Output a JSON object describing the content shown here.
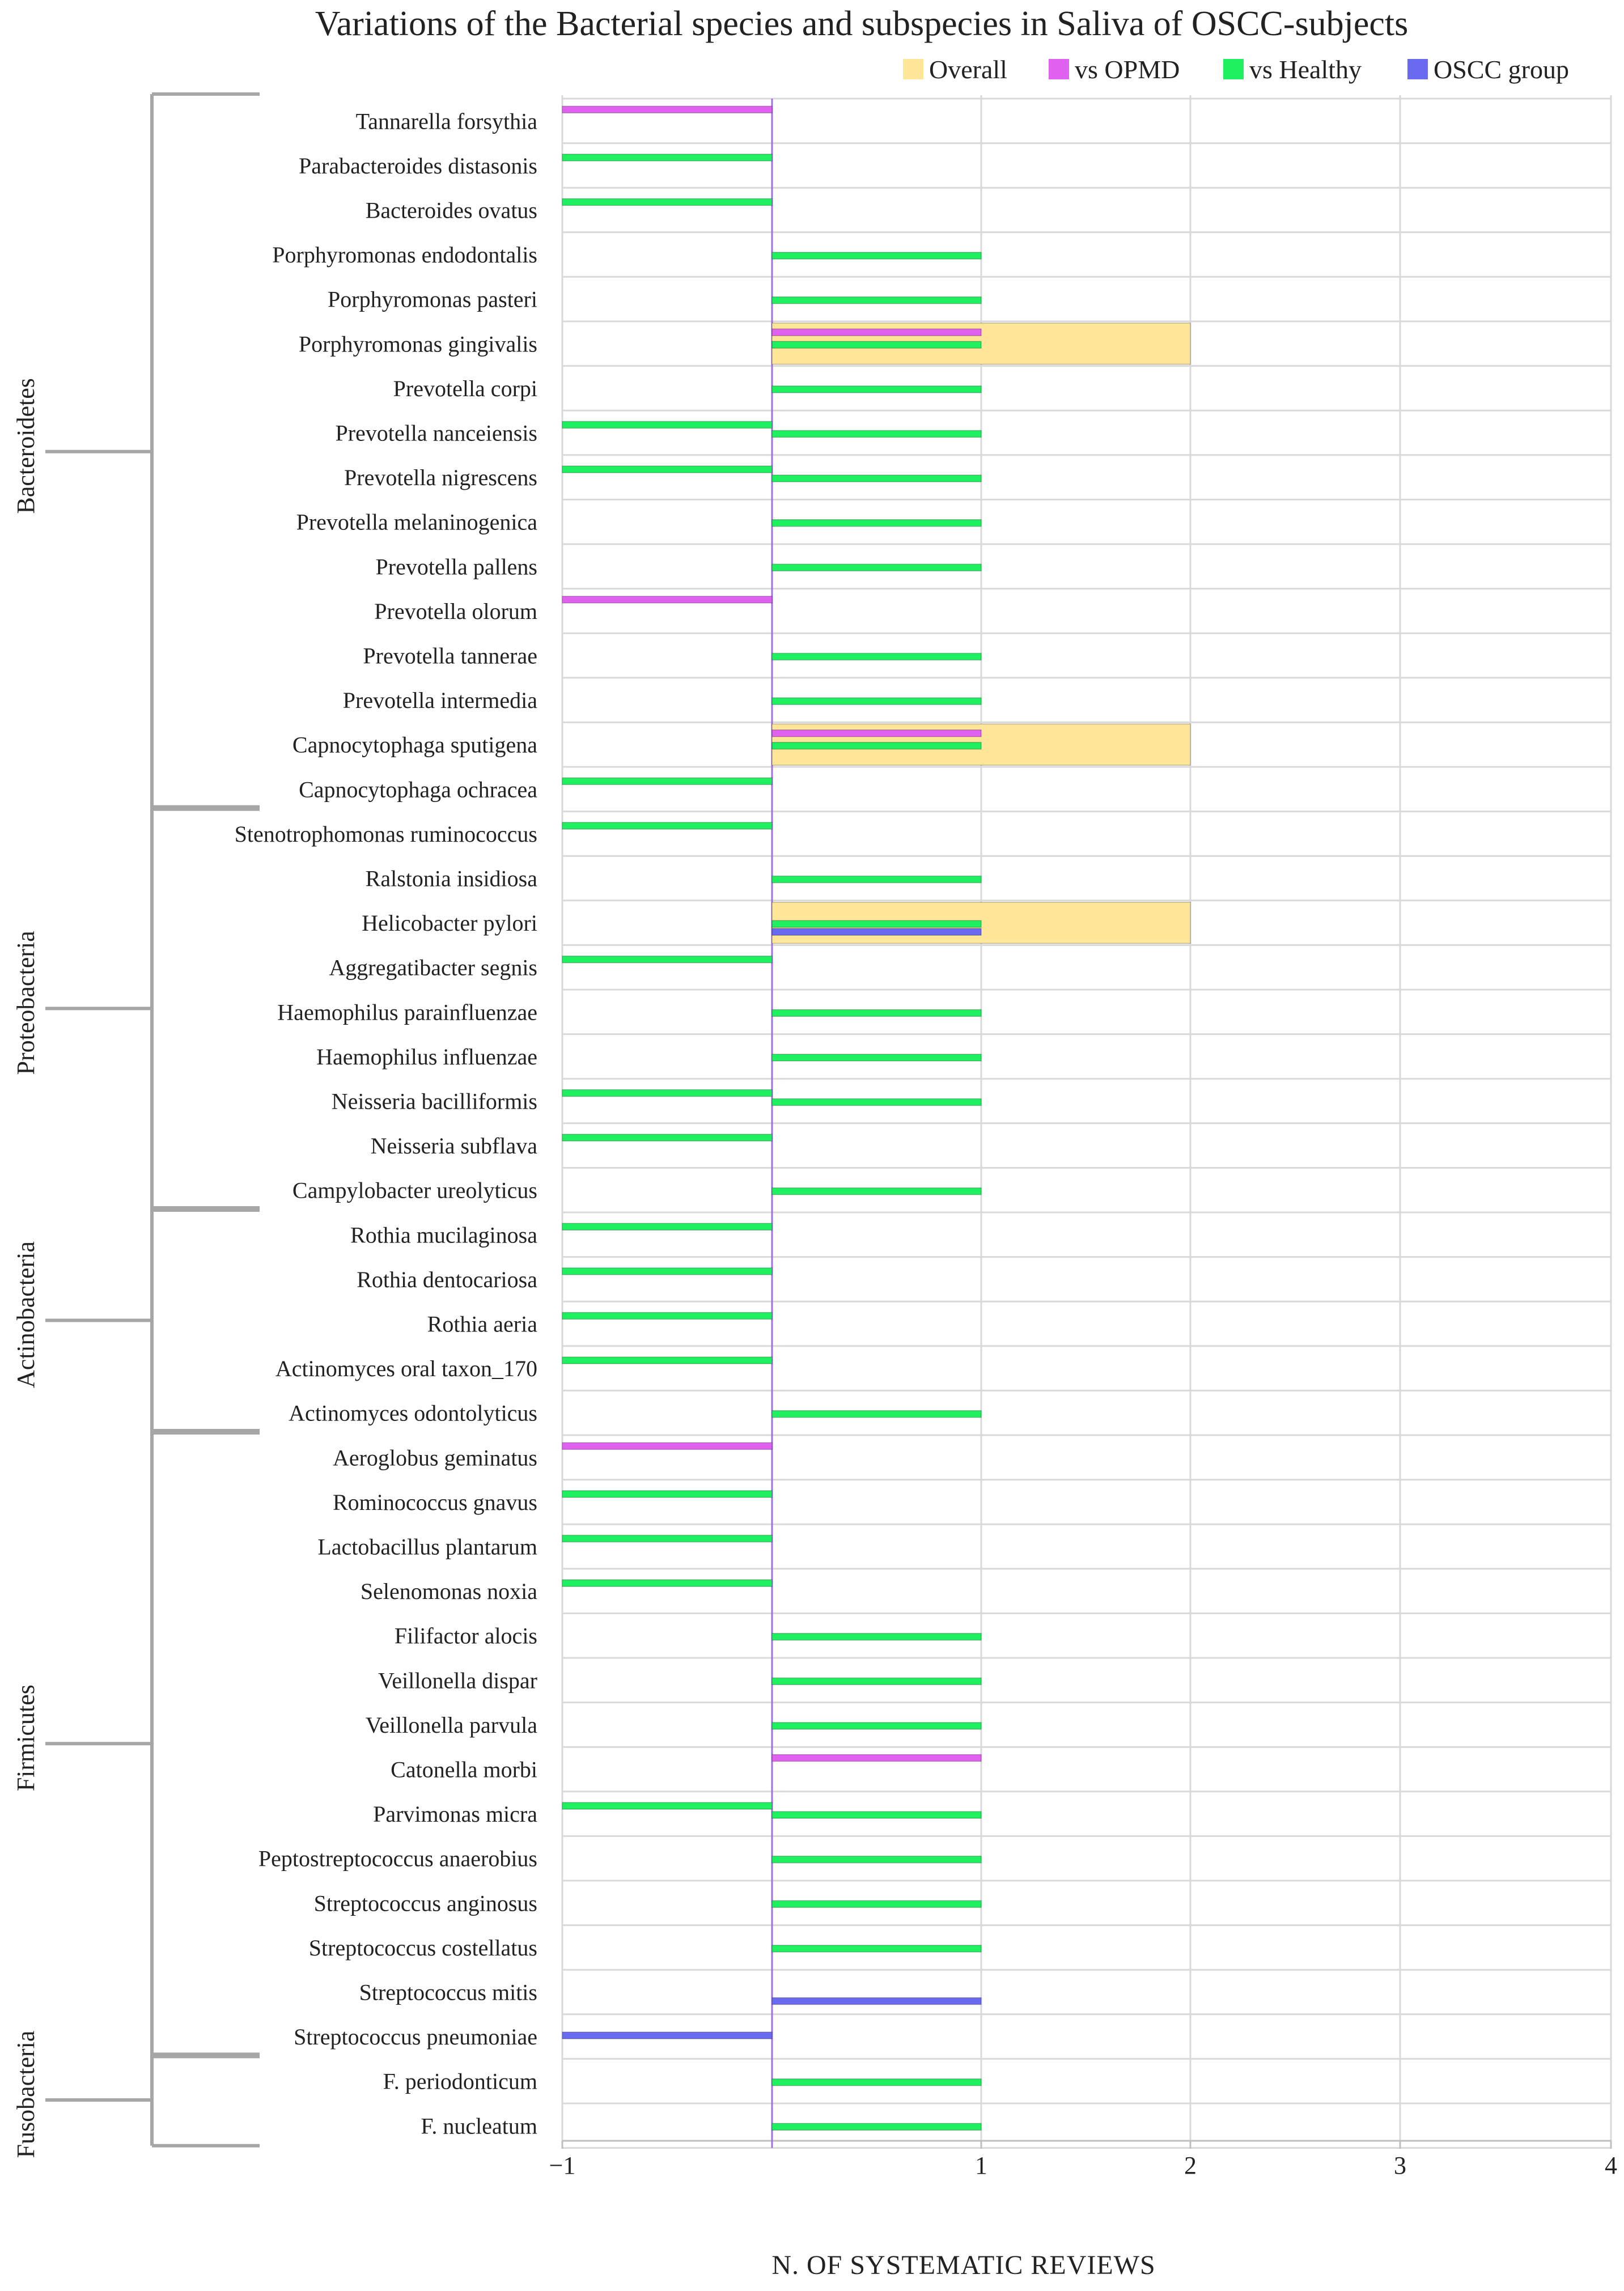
{
  "chart_data": {
    "type": "bar",
    "orientation": "horizontal",
    "title": "Variations of the Bacterial species and subspecies in Saliva of OSCC-subjects",
    "xlabel": "N. OF SYSTEMATIC REVIEWS",
    "ylabel": "",
    "xlim": [
      -1,
      4
    ],
    "xticks": [
      {
        "value": -1,
        "label": "−1"
      },
      {
        "value": 1,
        "label": "1"
      },
      {
        "value": 2,
        "label": "2"
      },
      {
        "value": 3,
        "label": "3"
      },
      {
        "value": 4,
        "label": "4"
      }
    ],
    "grid": true,
    "legend_position": "top-right",
    "categories": [
      "Tannarella forsythia",
      "Parabacteroides distasonis",
      "Bacteroides ovatus",
      "Porphyromonas endodontalis",
      "Porphyromonas pasteri",
      "Porphyromonas gingivalis",
      "Prevotella corpi",
      "Prevotella nanceiensis",
      "Prevotella nigrescens",
      "Prevotella melaninogenica",
      "Prevotella pallens",
      "Prevotella olorum",
      "Prevotella tannerae",
      "Prevotella intermedia",
      "Capnocytophaga sputigena",
      "Capnocytophaga ochracea",
      "Stenotrophomonas ruminococcus",
      "Ralstonia insidiosa",
      "Helicobacter pylori",
      "Aggregatibacter segnis",
      "Haemophilus parainfluenzae",
      "Haemophilus influenzae",
      "Neisseria bacilliformis",
      "Neisseria subflava",
      "Campylobacter ureolyticus",
      "Rothia mucilaginosa",
      "Rothia dentocariosa",
      "Rothia aeria",
      "Actinomyces oral taxon_170",
      "Actinomyces odontolyticus",
      "Aeroglobus geminatus",
      "Rominococcus gnavus",
      "Lactobacillus plantarum",
      "Selenomonas noxia",
      "Filifactor alocis",
      "Veillonella dispar",
      "Veillonella parvula",
      "Catonella morbi",
      "Parvimonas micra",
      "Peptostreptococcus anaerobius",
      "Streptococcus anginosus",
      "Streptococcus costellatus",
      "Streptococcus mitis",
      "Streptococcus pneumoniae",
      "F. periodonticum",
      "F. nucleatum"
    ],
    "series": [
      {
        "name": "Overall",
        "color": "#FFE699",
        "values": [
          0,
          0,
          0,
          0,
          0,
          2,
          0,
          0,
          0,
          0,
          0,
          0,
          0,
          0,
          2,
          0,
          0,
          0,
          2,
          0,
          0,
          0,
          0,
          0,
          0,
          0,
          0,
          0,
          0,
          0,
          0,
          0,
          0,
          0,
          0,
          0,
          0,
          0,
          0,
          0,
          0,
          0,
          0,
          0,
          0,
          0
        ]
      },
      {
        "name": "vs OPMD",
        "color": "#E060F0",
        "values": [
          -1,
          0,
          0,
          0,
          0,
          1,
          0,
          0,
          0,
          0,
          0,
          -1,
          0,
          0,
          1,
          0,
          0,
          0,
          0,
          0,
          0,
          0,
          0,
          0,
          0,
          0,
          0,
          0,
          0,
          0,
          -1,
          0,
          0,
          0,
          0,
          0,
          0,
          1,
          0,
          0,
          0,
          0,
          0,
          0,
          0,
          0
        ]
      },
      {
        "name": "vs Healthy",
        "color": "#1EF060",
        "values": [
          0,
          -1,
          -1,
          1,
          1,
          1,
          1,
          [
            -1,
            1
          ],
          [
            -1,
            1
          ],
          1,
          1,
          0,
          1,
          1,
          1,
          -1,
          -1,
          1,
          1,
          -1,
          1,
          1,
          [
            -1,
            1
          ],
          -1,
          1,
          -1,
          -1,
          -1,
          -1,
          1,
          0,
          -1,
          -1,
          -1,
          1,
          1,
          1,
          0,
          [
            -1,
            1
          ],
          1,
          1,
          1,
          0,
          0,
          1,
          1
        ]
      },
      {
        "name": "OSCC group",
        "color": "#6A6AF0",
        "values": [
          0,
          0,
          0,
          0,
          0,
          0,
          0,
          0,
          0,
          0,
          0,
          0,
          0,
          0,
          0,
          0,
          0,
          0,
          1,
          0,
          0,
          0,
          0,
          0,
          0,
          0,
          0,
          0,
          0,
          0,
          0,
          0,
          0,
          0,
          0,
          0,
          0,
          0,
          0,
          0,
          0,
          0,
          1,
          -1,
          0,
          0
        ]
      }
    ],
    "groups": [
      {
        "name": "Bacteroidetes",
        "from": 0,
        "to": 15
      },
      {
        "name": "Proteobacteria",
        "from": 16,
        "to": 24
      },
      {
        "name": "Actinobacteria",
        "from": 25,
        "to": 29
      },
      {
        "name": "Firmicutes",
        "from": 30,
        "to": 43
      },
      {
        "name": "Fusobacteria",
        "from": 44,
        "to": 45
      }
    ]
  }
}
